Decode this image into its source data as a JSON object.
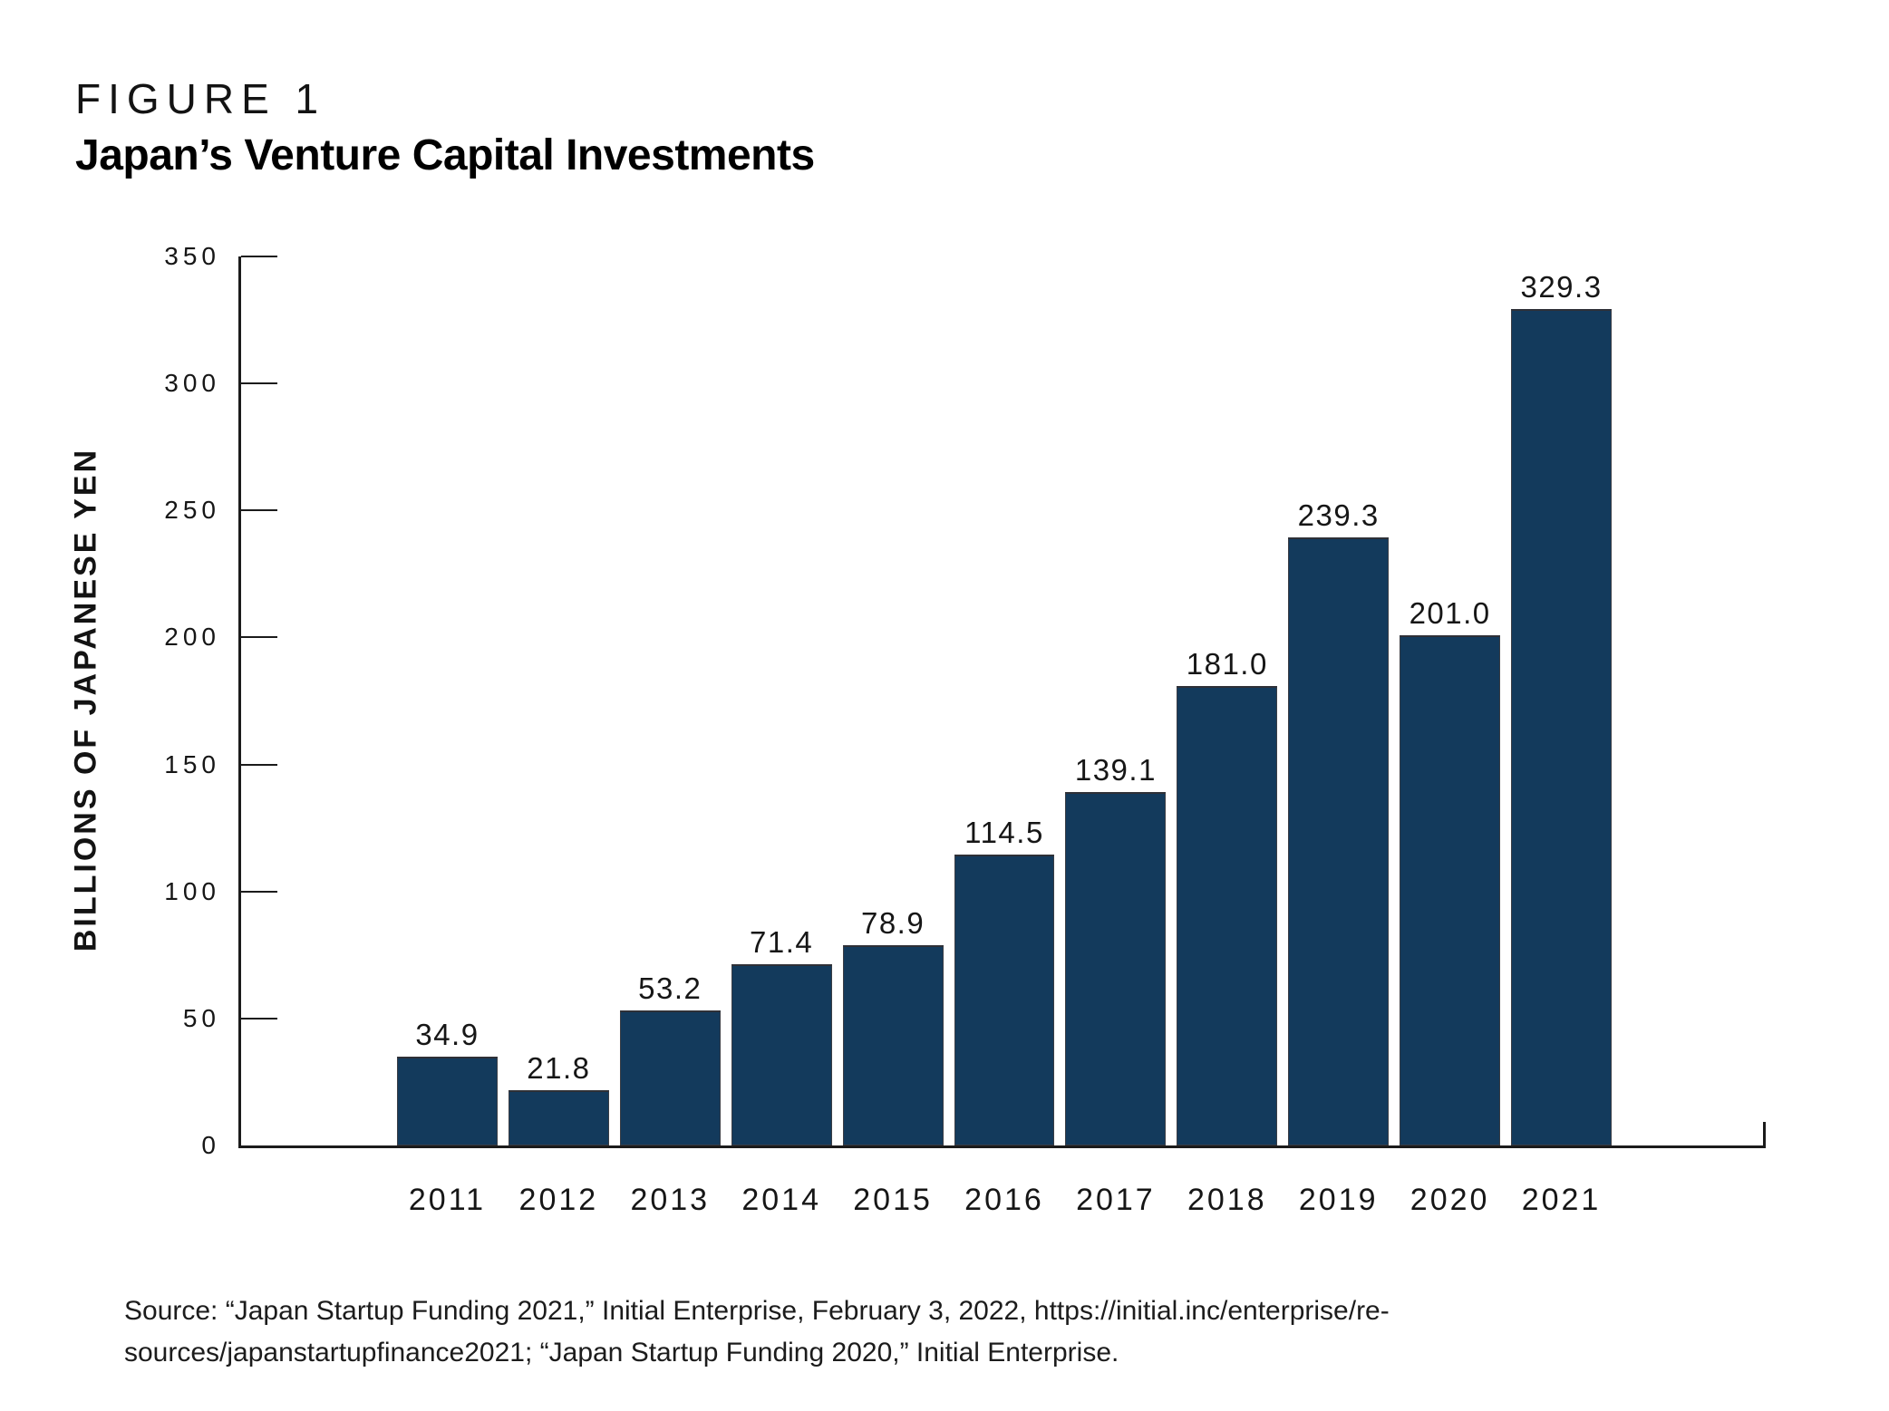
{
  "figure": {
    "kicker": "FIGURE 1",
    "title": "Japan’s Venture Capital Investments"
  },
  "chart_data": {
    "type": "bar",
    "title": "Japan’s Venture Capital Investments",
    "categories": [
      "2011",
      "2012",
      "2013",
      "2014",
      "2015",
      "2016",
      "2017",
      "2018",
      "2019",
      "2020",
      "2021"
    ],
    "values": [
      34.9,
      21.8,
      53.2,
      71.4,
      78.9,
      114.5,
      139.1,
      181.0,
      239.3,
      201.0,
      329.3
    ],
    "value_labels": [
      "34.9",
      "21.8",
      "53.2",
      "71.4",
      "78.9",
      "114.5",
      "139.1",
      "181.0",
      "239.3",
      "201.0",
      "329.3"
    ],
    "xlabel": "",
    "ylabel": "BILLIONS OF JAPANESE YEN",
    "ylim": [
      0,
      350
    ],
    "yticks": [
      0,
      50,
      100,
      150,
      200,
      250,
      300,
      350
    ],
    "grid": false,
    "legend_position": "none",
    "bar_color": "#133A5C",
    "axis_color": "#1b1b1b"
  },
  "source": {
    "text": "Source: “Japan Startup Funding 2021,” Initial Enterprise, February 3, 2022, https://initial.inc/enterprise/re-\nsources/japanstartupfinance2021; “Japan Startup Funding 2020,” Initial Enterprise."
  }
}
